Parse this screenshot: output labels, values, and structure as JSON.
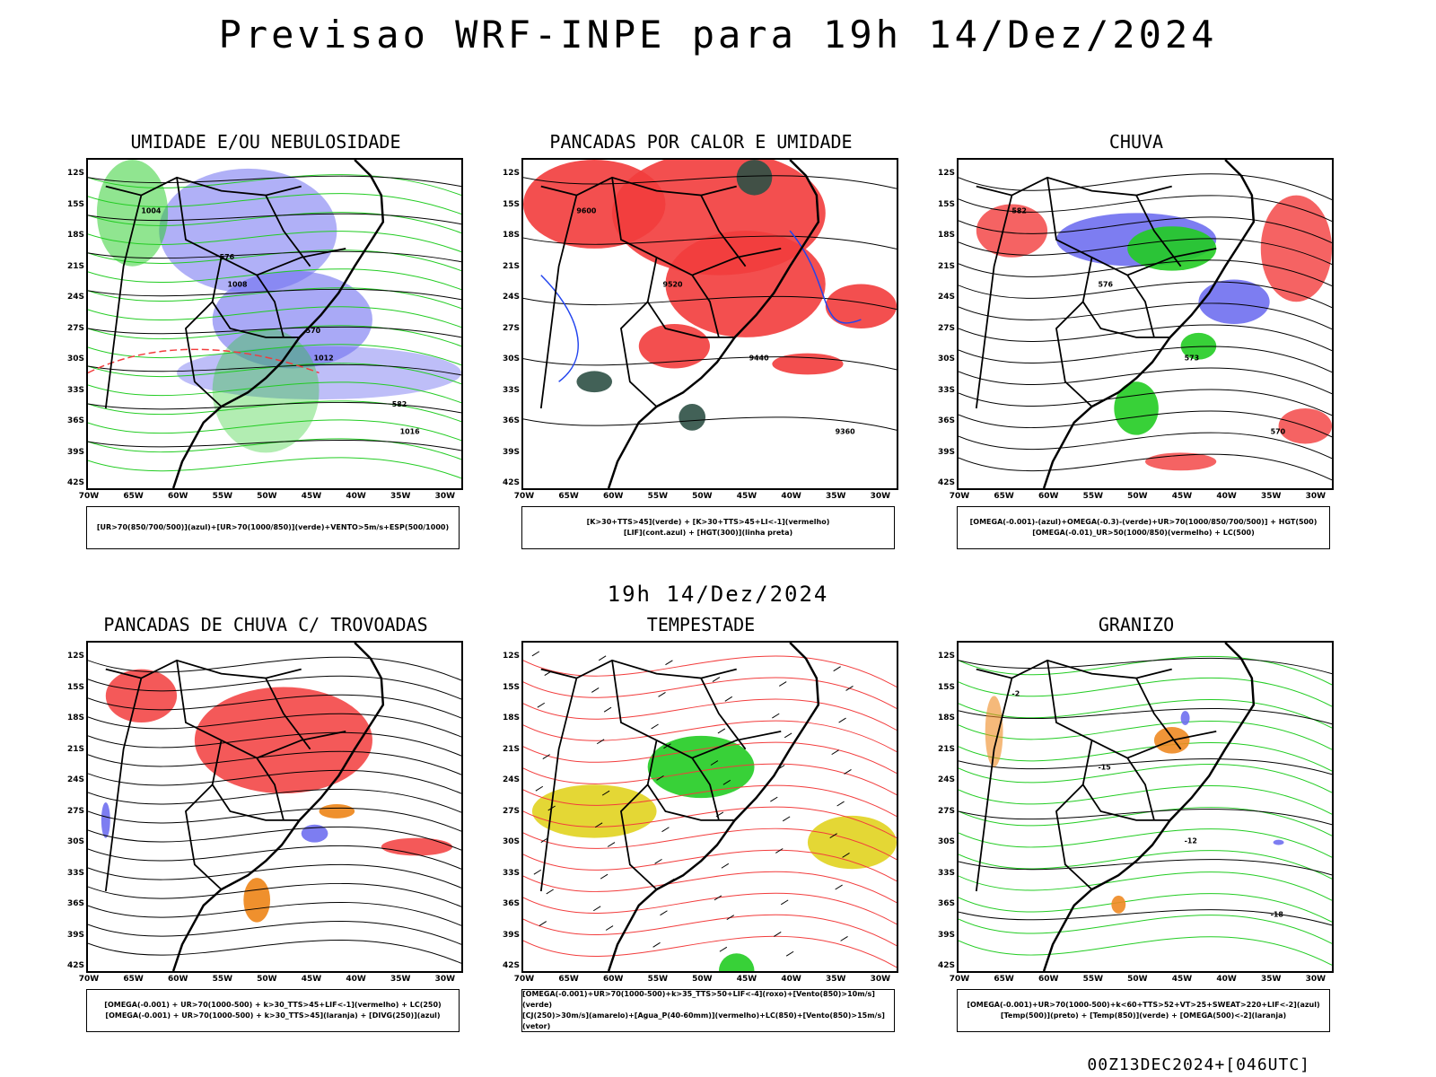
{
  "header": {
    "title": "Previsao WRF-INPE  para 19h 14/Dez/2024"
  },
  "mid_time": "19h 14/Dez/2024",
  "footer_run": "00Z13DEC2024+[046UTC]",
  "lat_labels": [
    "12S",
    "15S",
    "18S",
    "21S",
    "24S",
    "27S",
    "30S",
    "33S",
    "36S",
    "39S",
    "42S"
  ],
  "lon_labels": [
    "70W",
    "65W",
    "60W",
    "55W",
    "50W",
    "45W",
    "40W",
    "35W",
    "30W"
  ],
  "colors": {
    "blue": "#6f6ff0",
    "green": "#22cc22",
    "red": "#f23c3c",
    "orange": "#ee8a22",
    "yellow": "#e3d52a",
    "dark": "#2d5045"
  },
  "panels": [
    {
      "title": "UMIDADE E/OU NEBULOSIDADE",
      "legend": [
        "[UR>70(850/700/500)](azul)+[UR>70(1000/850)](verde)+VENTO>5m/s+ESP(500/1000)"
      ],
      "contour_labels": [
        "1004",
        "1008",
        "1012",
        "1016",
        "576",
        "570",
        "582"
      ]
    },
    {
      "title": "PANCADAS POR CALOR E UMIDADE",
      "legend": [
        "[K>30+TTS>45](verde) + [K>30+TTS>45+LI<-1](vermelho)",
        "[LIF](cont.azul) + [HGT(300)](linha preta)"
      ],
      "contour_labels": [
        "9600",
        "9520",
        "9440",
        "9360"
      ]
    },
    {
      "title": "CHUVA",
      "legend": [
        "[OMEGA(-0.001)-(azul)+OMEGA(-0.3)-(verde)+UR>70(1000/850/700/500)] + HGT(500)",
        "[OMEGA(-0.01)_UR>50(1000/850)(vermelho) + LC(500)"
      ],
      "contour_labels": [
        "582",
        "576",
        "573",
        "570"
      ]
    },
    {
      "title": "PANCADAS DE CHUVA C/ TROVOADAS",
      "legend": [
        "[OMEGA(-0.001) + UR>70(1000-500) + k>30_TTS>45+LIF<-1](vermelho) + LC(250)",
        "[OMEGA(-0.001) + UR>70(1000-500) + k>30_TTS>45](laranja) + [DIVG(250)](azul)"
      ],
      "contour_labels": []
    },
    {
      "title": "TEMPESTADE",
      "legend": [
        "[OMEGA(-0.001)+UR>70(1000-500)+k>35_TTS>50+LIF<-4](roxo)+[Vento(850)>10m/s](verde)",
        "[CJ(250)>30m/s](amarelo)+[Agua_P(40-60mm)](vermelho)+LC(850)+[Vento(850)>15m/s](vetor)"
      ],
      "contour_labels": []
    },
    {
      "title": "GRANIZO",
      "legend": [
        "[OMEGA(-0.001)+UR>70(1000-500)+k<60+TTS>52+VT>25+SWEAT>220+LIF<-2](azul)",
        "[Temp(500)](preto) + [Temp(850)](verde) + [OMEGA(500)<-2](laranja)"
      ],
      "contour_labels": [
        "-2",
        "-15",
        "-12",
        "-18"
      ]
    }
  ]
}
